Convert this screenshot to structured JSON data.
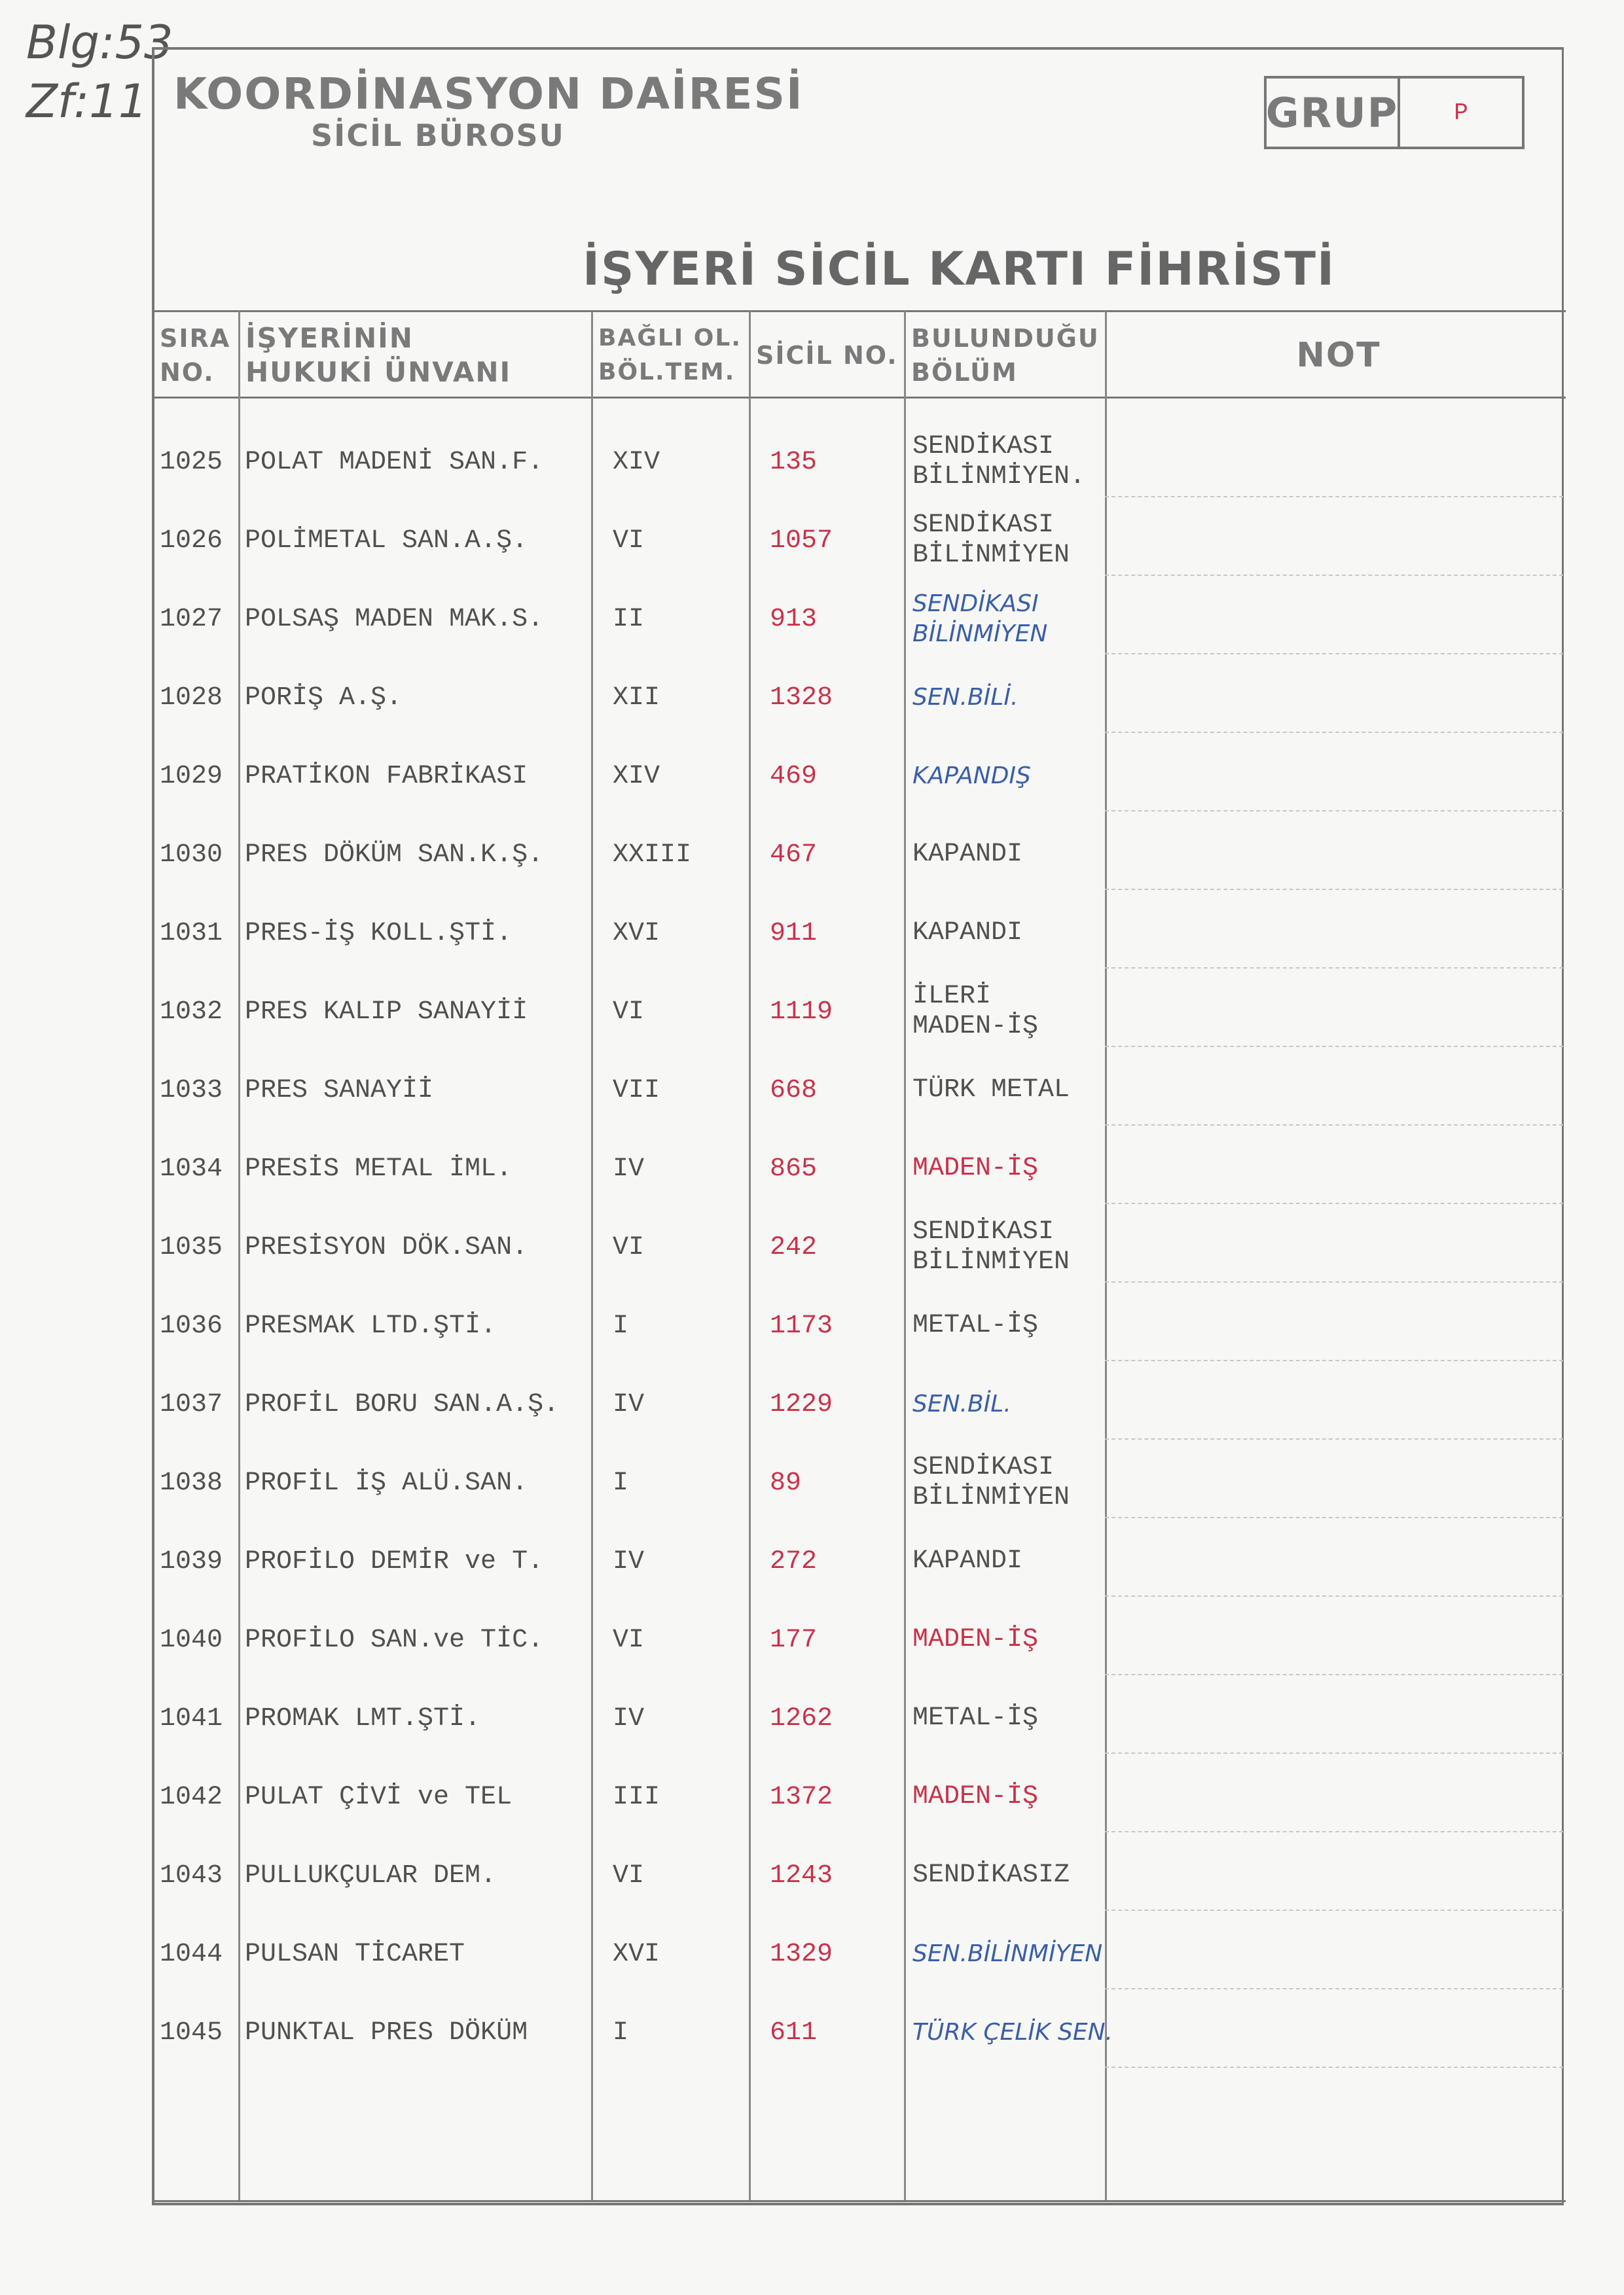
{
  "annotation": {
    "line1": "Blg:53",
    "line2": "Zf:11"
  },
  "header": {
    "office": "KOORDİNASYON DAİRESİ",
    "bureau": "SİCİL BÜROSU",
    "grup_label": "GRUP",
    "grup_value": "P",
    "title": "İŞYERİ SİCİL KARTI FİHRİSTİ"
  },
  "columns": {
    "sira": [
      "SIRA",
      "NO."
    ],
    "unvan": [
      "İŞYERİNİN",
      "HUKUKİ ÜNVANI"
    ],
    "bagli": [
      "BAĞLI OL.",
      "BÖL.TEM."
    ],
    "sicil": [
      "SİCİL NO."
    ],
    "bolum": [
      "BULUNDUĞU",
      "BÖLÜM"
    ],
    "not": [
      "NOT"
    ]
  },
  "colors": {
    "typed": "#505050",
    "red_ink": "#c8324a",
    "blue_ink": "#3a5fa8"
  },
  "rows": [
    {
      "sira": "1025",
      "unvan": "POLAT MADENİ SAN.F.",
      "bagli": "XIV",
      "sicil": "135",
      "bolum": [
        "SENDİKASI",
        "BİLİNMİYEN."
      ],
      "style": "typed"
    },
    {
      "sira": "1026",
      "unvan": "POLİMETAL SAN.A.Ş.",
      "bagli": "VI",
      "sicil": "1057",
      "bolum": [
        "SENDİKASI",
        "BİLİNMİYEN"
      ],
      "style": "typed"
    },
    {
      "sira": "1027",
      "unvan": "POLSAŞ MADEN MAK.S.",
      "bagli": "II",
      "sicil": "913",
      "bolum": [
        "SENDİKASI",
        "BİLİNMİYEN"
      ],
      "style": "blue"
    },
    {
      "sira": "1028",
      "unvan": "PORİŞ A.Ş.",
      "bagli": "XII",
      "sicil": "1328",
      "bolum": [
        "SEN.BİLİ."
      ],
      "style": "blue"
    },
    {
      "sira": "1029",
      "unvan": "PRATİKON FABRİKASI",
      "bagli": "XIV",
      "sicil": "469",
      "bolum": [
        "KAPANDIŞ"
      ],
      "style": "blue"
    },
    {
      "sira": "1030",
      "unvan": "PRES DÖKÜM SAN.K.Ş.",
      "bagli": "XXIII",
      "sicil": "467",
      "bolum": [
        "KAPANDI"
      ],
      "style": "typed"
    },
    {
      "sira": "1031",
      "unvan": "PRES-İŞ KOLL.ŞTİ.",
      "bagli": "XVI",
      "sicil": "911",
      "bolum": [
        "KAPANDI"
      ],
      "style": "typed"
    },
    {
      "sira": "1032",
      "unvan": "PRES KALIP SANAYİİ",
      "bagli": "VI",
      "sicil": "1119",
      "bolum": [
        "İLERİ",
        "MADEN-İŞ"
      ],
      "style": "typed"
    },
    {
      "sira": "1033",
      "unvan": "PRES SANAYİİ",
      "bagli": "VII",
      "sicil": "668",
      "bolum": [
        "TÜRK METAL"
      ],
      "style": "typed"
    },
    {
      "sira": "1034",
      "unvan": "PRESİS METAL İML.",
      "bagli": "IV",
      "sicil": "865",
      "bolum": [
        "MADEN-İŞ"
      ],
      "style": "red"
    },
    {
      "sira": "1035",
      "unvan": "PRESİSYON DÖK.SAN.",
      "bagli": "VI",
      "sicil": "242",
      "bolum": [
        "SENDİKASI",
        "BİLİNMİYEN"
      ],
      "style": "typed"
    },
    {
      "sira": "1036",
      "unvan": "PRESMAK LTD.ŞTİ.",
      "bagli": "I",
      "sicil": "1173",
      "bolum": [
        "METAL-İŞ"
      ],
      "style": "typed"
    },
    {
      "sira": "1037",
      "unvan": "PROFİL BORU SAN.A.Ş.",
      "bagli": "IV",
      "sicil": "1229",
      "bolum": [
        "SEN.BİL."
      ],
      "style": "blue"
    },
    {
      "sira": "1038",
      "unvan": "PROFİL İŞ ALÜ.SAN.",
      "bagli": "I",
      "sicil": "89",
      "bolum": [
        "SENDİKASI",
        "BİLİNMİYEN"
      ],
      "style": "typed"
    },
    {
      "sira": "1039",
      "unvan": "PROFİLO DEMİR ve T.",
      "bagli": "IV",
      "sicil": "272",
      "bolum": [
        "KAPANDI"
      ],
      "style": "typed"
    },
    {
      "sira": "1040",
      "unvan": "PROFİLO SAN.ve TİC.",
      "bagli": "VI",
      "sicil": "177",
      "bolum": [
        "MADEN-İŞ"
      ],
      "style": "red"
    },
    {
      "sira": "1041",
      "unvan": "PROMAK LMT.ŞTİ.",
      "bagli": "IV",
      "sicil": "1262",
      "bolum": [
        "METAL-İŞ"
      ],
      "style": "typed"
    },
    {
      "sira": "1042",
      "unvan": "PULAT ÇİVİ ve TEL",
      "bagli": "III",
      "sicil": "1372",
      "bolum": [
        "MADEN-İŞ"
      ],
      "style": "red"
    },
    {
      "sira": "1043",
      "unvan": "PULLUKÇULAR DEM.",
      "bagli": "VI",
      "sicil": "1243",
      "bolum": [
        "SENDİKASIZ"
      ],
      "style": "typed"
    },
    {
      "sira": "1044",
      "unvan": "PULSAN TİCARET",
      "bagli": "XVI",
      "sicil": "1329",
      "bolum": [
        "SEN.BİLİNMİYEN"
      ],
      "style": "blue"
    },
    {
      "sira": "1045",
      "unvan": "PUNKTAL PRES DÖKÜM",
      "bagli": "I",
      "sicil": "611",
      "bolum": [
        "TÜRK ÇELİK SEN."
      ],
      "style": "blue"
    }
  ]
}
